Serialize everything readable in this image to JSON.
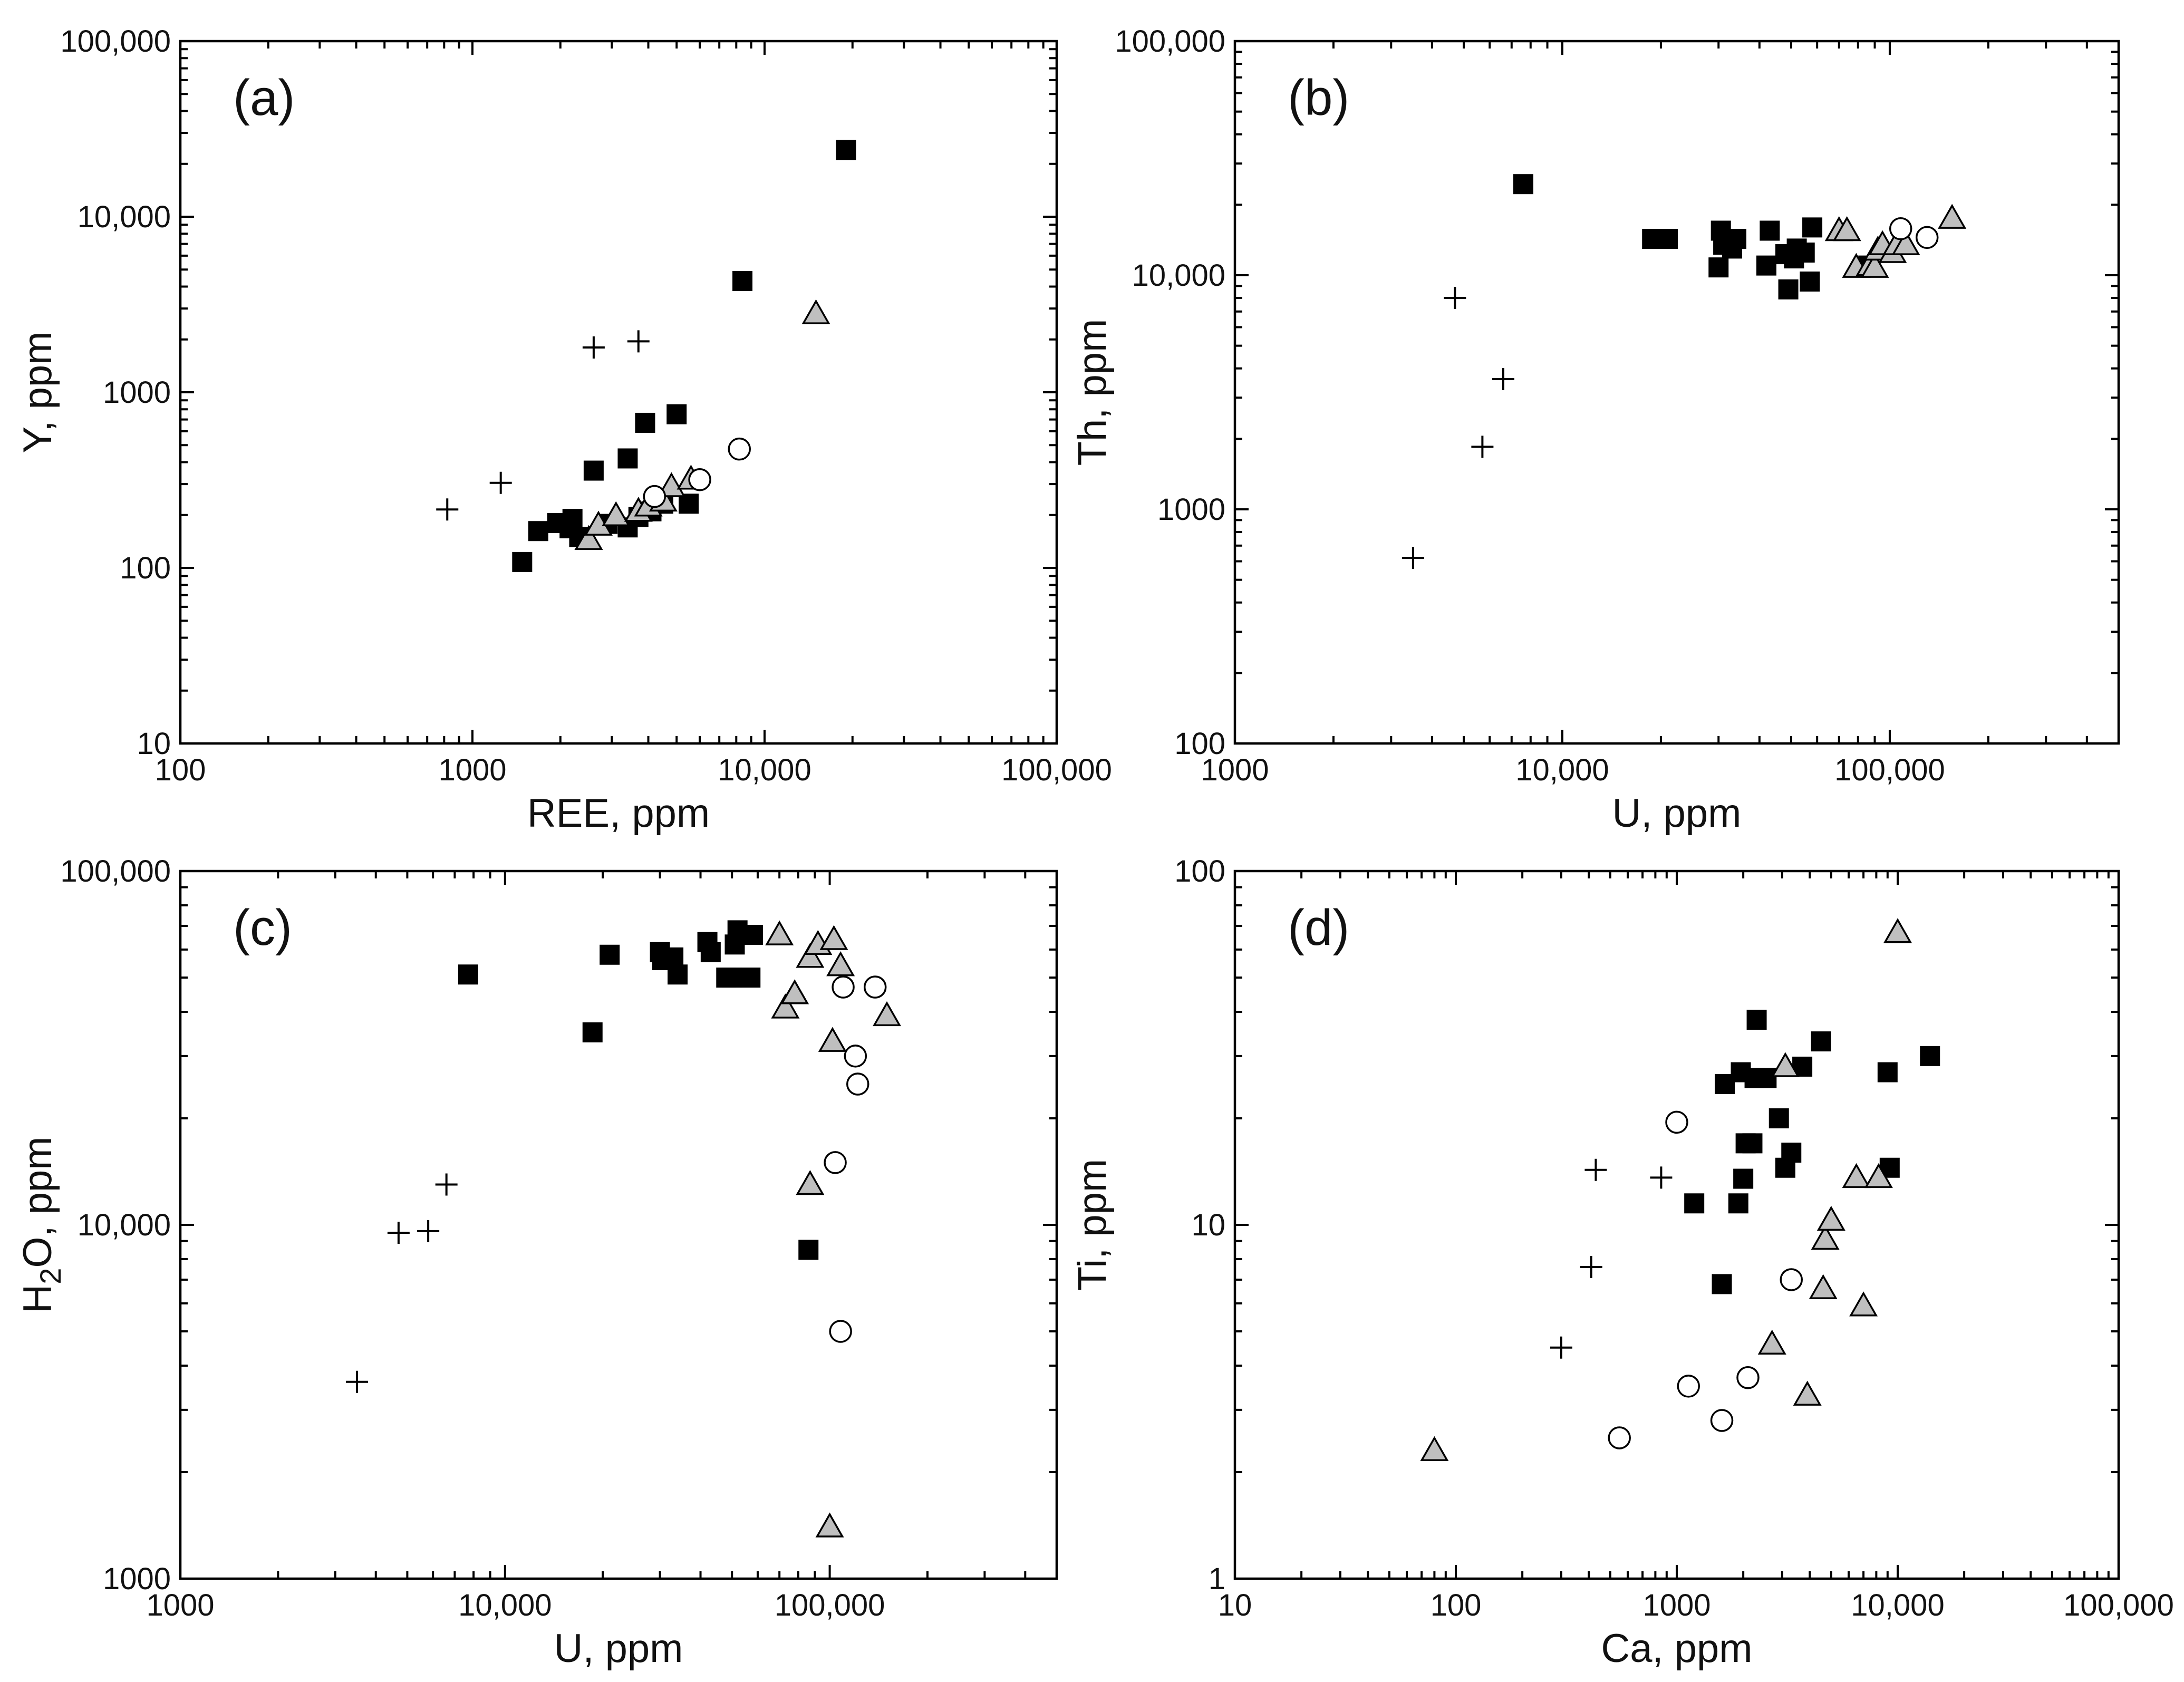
{
  "figure": {
    "series_names": [
      "plus",
      "square",
      "triangle",
      "circle"
    ],
    "colors": {
      "square": "#000000",
      "triangle": "#bfbfbf",
      "circle": "#ffffff",
      "plus": "#000000"
    }
  },
  "chart_data": [
    {
      "type": "scatter",
      "panel_label": "(a)",
      "xscale": "log",
      "yscale": "log",
      "xlim": [
        100,
        100000
      ],
      "ylim": [
        10,
        100000
      ],
      "xlabel": "REE, ppm",
      "ylabel": "Y, ppm",
      "xticks": [
        {
          "v": 100,
          "label": "100"
        },
        {
          "v": 1000,
          "label": "1000"
        },
        {
          "v": 10000,
          "label": "10,000"
        },
        {
          "v": 100000,
          "label": "100,000"
        }
      ],
      "yticks": [
        {
          "v": 10,
          "label": "10"
        },
        {
          "v": 100,
          "label": "100"
        },
        {
          "v": 1000,
          "label": "1000"
        },
        {
          "v": 10000,
          "label": "10,000"
        },
        {
          "v": 100000,
          "label": "100,000"
        }
      ],
      "series": [
        {
          "name": "plus",
          "points": [
            [
              820,
              215
            ],
            [
              1250,
              305
            ],
            [
              2600,
              1800
            ],
            [
              3700,
              1950
            ]
          ]
        },
        {
          "name": "square",
          "points": [
            [
              1480,
              108
            ],
            [
              1680,
              162
            ],
            [
              1950,
              180
            ],
            [
              2150,
              168
            ],
            [
              2200,
              190
            ],
            [
              2320,
              150
            ],
            [
              2600,
              358
            ],
            [
              2900,
              178
            ],
            [
              3400,
              170
            ],
            [
              3400,
              420
            ],
            [
              3700,
              195
            ],
            [
              3900,
              670
            ],
            [
              4100,
              210
            ],
            [
              4500,
              232
            ],
            [
              5000,
              750
            ],
            [
              5500,
              232
            ],
            [
              8400,
              4300
            ],
            [
              19000,
              24000
            ]
          ]
        },
        {
          "name": "triangle",
          "points": [
            [
              2500,
              145
            ],
            [
              2700,
              175
            ],
            [
              3100,
              198
            ],
            [
              3700,
              210
            ],
            [
              4000,
              225
            ],
            [
              4500,
              240
            ],
            [
              4800,
              290
            ],
            [
              5600,
              320
            ],
            [
              15000,
              2800
            ]
          ]
        },
        {
          "name": "circle",
          "points": [
            [
              4200,
              255
            ],
            [
              6000,
              318
            ],
            [
              8200,
              475
            ]
          ]
        }
      ]
    },
    {
      "type": "scatter",
      "panel_label": "(b)",
      "xscale": "log",
      "yscale": "log",
      "xlim": [
        1000,
        500000
      ],
      "ylim": [
        100,
        100000
      ],
      "xlabel": "U, ppm",
      "ylabel": "Th, ppm",
      "xticks": [
        {
          "v": 1000,
          "label": "1000"
        },
        {
          "v": 10000,
          "label": "10,000"
        },
        {
          "v": 100000,
          "label": "100,000"
        }
      ],
      "yticks": [
        {
          "v": 100,
          "label": "100"
        },
        {
          "v": 1000,
          "label": "1000"
        },
        {
          "v": 10000,
          "label": "10,000"
        },
        {
          "v": 100000,
          "label": "100,000"
        }
      ],
      "series": [
        {
          "name": "plus",
          "points": [
            [
              3500,
              620
            ],
            [
              4700,
              8000
            ],
            [
              5700,
              1850
            ],
            [
              6600,
              3600
            ]
          ]
        },
        {
          "name": "square",
          "points": [
            [
              7600,
              24500
            ],
            [
              18800,
              14300
            ],
            [
              21000,
              14300
            ],
            [
              30000,
              10800
            ],
            [
              30500,
              15500
            ],
            [
              31000,
              13500
            ],
            [
              33000,
              13000
            ],
            [
              34000,
              14300
            ],
            [
              42000,
              11000
            ],
            [
              43000,
              15500
            ],
            [
              48000,
              12300
            ],
            [
              49000,
              8700
            ],
            [
              51000,
              11800
            ],
            [
              52000,
              13000
            ],
            [
              55000,
              12500
            ],
            [
              57000,
              9400
            ],
            [
              58000,
              16000
            ],
            [
              86000,
              11000
            ]
          ]
        },
        {
          "name": "triangle",
          "points": [
            [
              70000,
              15500
            ],
            [
              74000,
              15500
            ],
            [
              79000,
              10800
            ],
            [
              87000,
              11000
            ],
            [
              90000,
              10800
            ],
            [
              92000,
              12800
            ],
            [
              95000,
              13500
            ],
            [
              102000,
              12500
            ],
            [
              105000,
              13500
            ],
            [
              112000,
              13500
            ],
            [
              155000,
              17500
            ]
          ]
        },
        {
          "name": "circle",
          "points": [
            [
              108000,
              15800
            ],
            [
              130000,
              14500
            ]
          ]
        }
      ]
    },
    {
      "type": "scatter",
      "panel_label": "(c)",
      "xscale": "log",
      "yscale": "log",
      "xlim": [
        1000,
        500000
      ],
      "ylim": [
        1000,
        100000
      ],
      "xlabel": "U, ppm",
      "ylabel": "H2O, ppm",
      "xticks": [
        {
          "v": 1000,
          "label": "1000"
        },
        {
          "v": 10000,
          "label": "10,000"
        },
        {
          "v": 100000,
          "label": "100,000"
        }
      ],
      "yticks": [
        {
          "v": 1000,
          "label": "1000"
        },
        {
          "v": 10000,
          "label": "10,000"
        },
        {
          "v": 100000,
          "label": "100,000"
        }
      ],
      "series": [
        {
          "name": "plus",
          "points": [
            [
              3500,
              3600
            ],
            [
              4700,
              9500
            ],
            [
              5800,
              9600
            ],
            [
              6600,
              13000
            ]
          ]
        },
        {
          "name": "square",
          "points": [
            [
              7700,
              51000
            ],
            [
              18600,
              35000
            ],
            [
              21000,
              58000
            ],
            [
              30000,
              59000
            ],
            [
              30500,
              56000
            ],
            [
              33000,
              57000
            ],
            [
              34000,
              51000
            ],
            [
              42000,
              63000
            ],
            [
              43000,
              59000
            ],
            [
              48000,
              50000
            ],
            [
              50000,
              50000
            ],
            [
              51000,
              62000
            ],
            [
              52000,
              68000
            ],
            [
              57000,
              50000
            ],
            [
              58000,
              66000
            ],
            [
              86000,
              8500
            ]
          ]
        },
        {
          "name": "triangle",
          "points": [
            [
              70000,
              66000
            ],
            [
              73000,
              41000
            ],
            [
              78000,
              45000
            ],
            [
              87000,
              13000
            ],
            [
              87000,
              57000
            ],
            [
              92000,
              62000
            ],
            [
              100000,
              1400
            ],
            [
              102000,
              33000
            ],
            [
              103000,
              64000
            ],
            [
              108000,
              54000
            ],
            [
              150000,
              39000
            ]
          ]
        },
        {
          "name": "circle",
          "points": [
            [
              104000,
              15000
            ],
            [
              108000,
              5000
            ],
            [
              110000,
              47000
            ],
            [
              120000,
              30000
            ],
            [
              122000,
              25000
            ],
            [
              138000,
              47000
            ]
          ]
        }
      ]
    },
    {
      "type": "scatter",
      "panel_label": "(d)",
      "xscale": "log",
      "yscale": "log",
      "xlim": [
        10,
        100000
      ],
      "ylim": [
        1,
        100
      ],
      "xlabel": "Ca, ppm",
      "ylabel": "Ti, ppm",
      "xticks": [
        {
          "v": 10,
          "label": "10"
        },
        {
          "v": 100,
          "label": "100"
        },
        {
          "v": 1000,
          "label": "1000"
        },
        {
          "v": 10000,
          "label": "10,000"
        },
        {
          "v": 100000,
          "label": "100,000"
        }
      ],
      "yticks": [
        {
          "v": 1,
          "label": "1"
        },
        {
          "v": 10,
          "label": "10"
        },
        {
          "v": 100,
          "label": "100"
        }
      ],
      "series": [
        {
          "name": "plus",
          "points": [
            [
              300,
              4.5
            ],
            [
              410,
              7.6
            ],
            [
              430,
              14.3
            ],
            [
              850,
              13.6
            ]
          ]
        },
        {
          "name": "square",
          "points": [
            [
              1200,
              11.5
            ],
            [
              1600,
              6.8
            ],
            [
              1650,
              25
            ],
            [
              1900,
              11.5
            ],
            [
              1950,
              27
            ],
            [
              2000,
              13.5
            ],
            [
              2050,
              17
            ],
            [
              2200,
              17
            ],
            [
              2250,
              26
            ],
            [
              2300,
              38
            ],
            [
              2550,
              26
            ],
            [
              2900,
              20
            ],
            [
              3100,
              14.5
            ],
            [
              3300,
              16
            ],
            [
              3700,
              28
            ],
            [
              4500,
              33
            ],
            [
              9000,
              27
            ],
            [
              9200,
              14.5
            ],
            [
              14000,
              30
            ]
          ]
        },
        {
          "name": "triangle",
          "points": [
            [
              80,
              2.3
            ],
            [
              2700,
              4.6
            ],
            [
              3100,
              28
            ],
            [
              3900,
              3.3
            ],
            [
              4600,
              6.6
            ],
            [
              4700,
              9.1
            ],
            [
              5000,
              10.3
            ],
            [
              6500,
              13.6
            ],
            [
              7000,
              5.9
            ],
            [
              8200,
              13.6
            ],
            [
              10000,
              67
            ]
          ]
        },
        {
          "name": "circle",
          "points": [
            [
              550,
              2.5
            ],
            [
              1000,
              19.5
            ],
            [
              1130,
              3.5
            ],
            [
              1600,
              2.8
            ],
            [
              2100,
              3.7
            ],
            [
              3300,
              7
            ]
          ]
        }
      ]
    }
  ]
}
